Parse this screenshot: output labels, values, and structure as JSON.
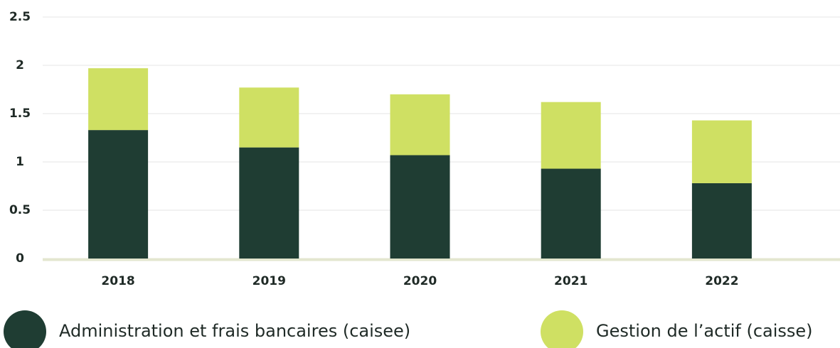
{
  "chart_data": {
    "type": "bar",
    "stacked": true,
    "categories": [
      "2018",
      "2019",
      "2020",
      "2021",
      "2022"
    ],
    "series": [
      {
        "name": "Administration et frais bancaires (caisee)",
        "color": "#1f3d33",
        "values": [
          1.33,
          1.15,
          1.07,
          0.93,
          0.78
        ]
      },
      {
        "name": "Gestion de l’actif (caisse)",
        "color": "#cfe063",
        "values": [
          0.64,
          0.62,
          0.63,
          0.69,
          0.65
        ]
      }
    ],
    "ylim": [
      0,
      2.5
    ],
    "yticks": [
      0,
      0.5,
      1,
      1.5,
      2,
      2.5
    ],
    "grid": true
  }
}
